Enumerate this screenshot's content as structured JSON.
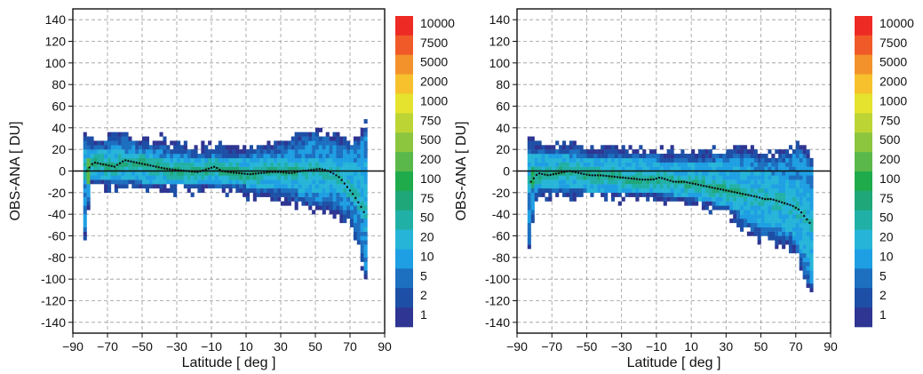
{
  "chart_data": [
    {
      "type": "heatmap",
      "xlabel": "Latitude  [ deg ]",
      "ylabel": "OBS-ANA  [ DU]",
      "xlim": [
        -90,
        90
      ],
      "ylim": [
        -150,
        150
      ],
      "x_ticks": [
        -90,
        -70,
        -50,
        -30,
        -10,
        10,
        30,
        50,
        70,
        90
      ],
      "y_ticks": [
        140,
        120,
        100,
        80,
        60,
        40,
        20,
        0,
        -20,
        -40,
        -60,
        -80,
        -100,
        -120,
        -140
      ],
      "grid": true,
      "zero_line": true,
      "mean_curve": {
        "x": [
          -82,
          -78,
          -72,
          -66,
          -60,
          -54,
          -48,
          -42,
          -36,
          -30,
          -24,
          -18,
          -12,
          -8,
          -4,
          0,
          6,
          12,
          18,
          24,
          30,
          36,
          42,
          48,
          52,
          56,
          60,
          64,
          68,
          72,
          76,
          78
        ],
        "y": [
          0,
          8,
          6,
          4,
          10,
          8,
          6,
          4,
          2,
          1,
          0,
          -1,
          2,
          4,
          0,
          -1,
          -2,
          -3,
          -2,
          -1,
          -1,
          -2,
          0,
          1,
          2,
          1,
          -2,
          -6,
          -14,
          -22,
          -32,
          -38
        ]
      },
      "envelope": {
        "x": [
          -83,
          -82,
          -80,
          -75,
          -70,
          -65,
          -60,
          -55,
          -50,
          -45,
          -40,
          -35,
          -30,
          -25,
          -20,
          -15,
          -10,
          -5,
          0,
          5,
          10,
          15,
          20,
          25,
          30,
          35,
          40,
          45,
          50,
          55,
          60,
          65,
          70,
          73,
          76,
          78,
          79
        ],
        "upper": [
          35,
          33,
          32,
          30,
          32,
          34,
          36,
          33,
          30,
          28,
          30,
          26,
          26,
          24,
          22,
          22,
          24,
          24,
          22,
          22,
          22,
          24,
          24,
          26,
          28,
          30,
          34,
          36,
          40,
          36,
          34,
          30,
          28,
          32,
          36,
          40,
          42
        ],
        "lower": [
          -62,
          -60,
          -14,
          -14,
          -16,
          -16,
          -16,
          -16,
          -17,
          -17,
          -17,
          -18,
          -18,
          -18,
          -18,
          -18,
          -18,
          -20,
          -20,
          -20,
          -22,
          -24,
          -24,
          -26,
          -28,
          -30,
          -32,
          -34,
          -38,
          -36,
          -40,
          -44,
          -48,
          -62,
          -80,
          -92,
          -100
        ],
        "core_upper": [
          18,
          18,
          18,
          20,
          18,
          18,
          18,
          16,
          16,
          14,
          14,
          12,
          12,
          12,
          12,
          12,
          12,
          12,
          10,
          10,
          10,
          10,
          10,
          10,
          10,
          10,
          12,
          12,
          14,
          12,
          12,
          10,
          8,
          8,
          8,
          6,
          6
        ],
        "core_lower": [
          -8,
          -8,
          -6,
          -8,
          -8,
          -8,
          -8,
          -8,
          -10,
          -10,
          -10,
          -10,
          -10,
          -10,
          -12,
          -12,
          -12,
          -12,
          -12,
          -12,
          -14,
          -14,
          -14,
          -14,
          -16,
          -16,
          -18,
          -18,
          -18,
          -18,
          -18,
          -20,
          -24,
          -30,
          -40,
          -50,
          -56
        ]
      },
      "colorbar": {
        "labels": [
          "10000",
          "7500",
          "5000",
          "2000",
          "1000",
          "750",
          "500",
          "200",
          "100",
          "75",
          "50",
          "20",
          "10",
          "5",
          "2",
          "1"
        ],
        "colors": [
          "#ee2a24",
          "#f05a28",
          "#f3922b",
          "#f6c12c",
          "#e6e32e",
          "#bdd534",
          "#8cc63f",
          "#5ab84a",
          "#1fab4b",
          "#1fa77a",
          "#21b0a6",
          "#26b5d8",
          "#1e9fe3",
          "#1d6fc0",
          "#1d4fa6",
          "#2e3592"
        ]
      }
    },
    {
      "type": "heatmap",
      "xlabel": "Latitude  [ deg ]",
      "ylabel": "OBS-ANA  [ DU]",
      "xlim": [
        -90,
        90
      ],
      "ylim": [
        -150,
        150
      ],
      "x_ticks": [
        -90,
        -70,
        -50,
        -30,
        -10,
        10,
        30,
        50,
        70,
        90
      ],
      "y_ticks": [
        140,
        120,
        100,
        80,
        60,
        40,
        20,
        0,
        -20,
        -40,
        -60,
        -80,
        -100,
        -120,
        -140
      ],
      "grid": true,
      "zero_line": true,
      "mean_curve": {
        "x": [
          -82,
          -78,
          -72,
          -66,
          -60,
          -54,
          -48,
          -42,
          -36,
          -30,
          -24,
          -18,
          -12,
          -8,
          -4,
          0,
          6,
          12,
          18,
          24,
          30,
          36,
          42,
          48,
          52,
          56,
          60,
          64,
          68,
          72,
          76,
          78
        ],
        "y": [
          -10,
          -2,
          -4,
          -2,
          0,
          -2,
          -4,
          -4,
          -5,
          -6,
          -7,
          -8,
          -8,
          -6,
          -8,
          -10,
          -10,
          -12,
          -14,
          -16,
          -18,
          -20,
          -22,
          -24,
          -26,
          -26,
          -28,
          -30,
          -32,
          -36,
          -44,
          -48
        ]
      },
      "envelope": {
        "x": [
          -83,
          -82,
          -80,
          -75,
          -70,
          -65,
          -60,
          -55,
          -50,
          -45,
          -40,
          -35,
          -30,
          -25,
          -20,
          -15,
          -10,
          -5,
          0,
          5,
          10,
          15,
          20,
          25,
          30,
          35,
          40,
          45,
          50,
          55,
          60,
          65,
          70,
          73,
          76,
          78,
          79
        ],
        "upper": [
          28,
          26,
          26,
          26,
          24,
          24,
          26,
          24,
          22,
          22,
          22,
          20,
          20,
          20,
          20,
          20,
          22,
          18,
          18,
          18,
          18,
          18,
          18,
          20,
          20,
          22,
          22,
          20,
          18,
          16,
          18,
          20,
          26,
          24,
          20,
          16,
          14
        ],
        "lower": [
          -72,
          -70,
          -30,
          -26,
          -24,
          -24,
          -24,
          -24,
          -24,
          -24,
          -26,
          -26,
          -26,
          -26,
          -26,
          -26,
          -26,
          -28,
          -28,
          -28,
          -30,
          -32,
          -34,
          -36,
          -40,
          -46,
          -54,
          -60,
          -64,
          -64,
          -68,
          -70,
          -74,
          -90,
          -104,
          -110,
          -112
        ],
        "core_upper": [
          14,
          14,
          14,
          14,
          14,
          14,
          14,
          12,
          12,
          12,
          10,
          10,
          10,
          10,
          10,
          10,
          10,
          8,
          8,
          8,
          8,
          6,
          6,
          6,
          6,
          4,
          4,
          2,
          0,
          -2,
          -4,
          -6,
          -8,
          -10,
          -14,
          -18,
          -20
        ],
        "core_lower": [
          -18,
          -16,
          -14,
          -16,
          -16,
          -16,
          -16,
          -16,
          -18,
          -18,
          -18,
          -18,
          -18,
          -18,
          -20,
          -20,
          -20,
          -20,
          -22,
          -22,
          -24,
          -26,
          -28,
          -30,
          -32,
          -36,
          -40,
          -44,
          -48,
          -50,
          -52,
          -56,
          -60,
          -70,
          -80,
          -88,
          -90
        ]
      },
      "colorbar": {
        "labels": [
          "10000",
          "7500",
          "5000",
          "2000",
          "1000",
          "750",
          "500",
          "200",
          "100",
          "75",
          "50",
          "20",
          "10",
          "5",
          "2",
          "1"
        ],
        "colors": [
          "#ee2a24",
          "#f05a28",
          "#f3922b",
          "#f6c12c",
          "#e6e32e",
          "#bdd534",
          "#8cc63f",
          "#5ab84a",
          "#1fab4b",
          "#1fa77a",
          "#21b0a6",
          "#26b5d8",
          "#1e9fe3",
          "#1d6fc0",
          "#1d4fa6",
          "#2e3592"
        ]
      }
    }
  ]
}
